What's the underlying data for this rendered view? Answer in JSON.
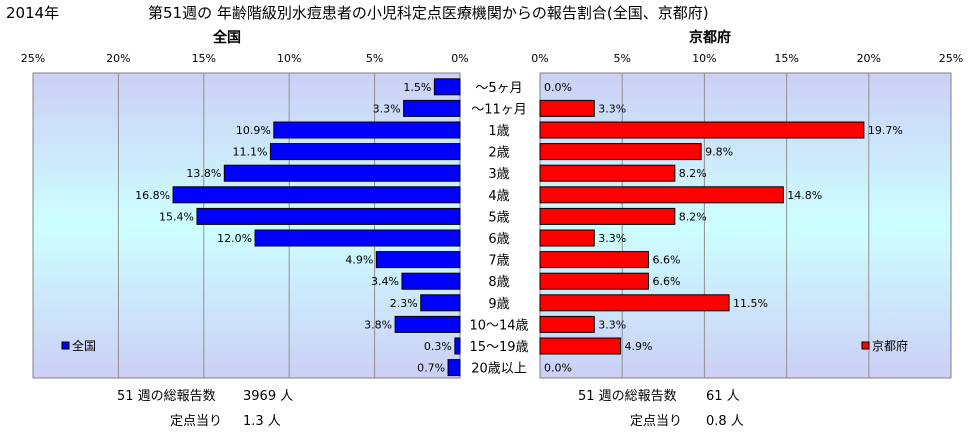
{
  "header": {
    "year": "2014年",
    "title": "第51週の  年齢階級別水痘患者の小児科定点医療機関からの報告割合(全国、京都府)"
  },
  "colors": {
    "national": "#0000ff",
    "kyoto": "#ff0000",
    "edge": "#000000"
  },
  "chart_data": [
    {
      "type": "bar",
      "orientation": "horizontal",
      "title": "全国",
      "categories": [
        "～5ヶ月",
        "～11ヶ月",
        "1歳",
        "2歳",
        "3歳",
        "4歳",
        "5歳",
        "6歳",
        "7歳",
        "8歳",
        "9歳",
        "10～14歳",
        "15～19歳",
        "20歳以上"
      ],
      "series": [
        {
          "name": "全国",
          "values": [
            1.5,
            3.3,
            10.9,
            11.1,
            13.8,
            16.8,
            15.4,
            12.0,
            4.9,
            3.4,
            2.3,
            3.8,
            0.3,
            0.7
          ]
        }
      ],
      "data_labels": [
        "1.5%",
        "3.3%",
        "10.9%",
        "11.1%",
        "13.8%",
        "16.8%",
        "15.4%",
        "12.0%",
        "4.9%",
        "3.4%",
        "2.3%",
        "3.8%",
        "0.3%",
        "0.7%"
      ],
      "xlim": [
        0,
        25
      ],
      "x_reversed": true,
      "ticks": [
        "25%",
        "20%",
        "15%",
        "10%",
        "5%",
        "0%"
      ],
      "legend": "bottom-left",
      "grid": true
    },
    {
      "type": "bar",
      "orientation": "horizontal",
      "title": "京都府",
      "categories": [
        "～5ヶ月",
        "～11ヶ月",
        "1歳",
        "2歳",
        "3歳",
        "4歳",
        "5歳",
        "6歳",
        "7歳",
        "8歳",
        "9歳",
        "10～14歳",
        "15～19歳",
        "20歳以上"
      ],
      "series": [
        {
          "name": "京都府",
          "values": [
            0.0,
            3.3,
            19.7,
            9.8,
            8.2,
            14.8,
            8.2,
            3.3,
            6.6,
            6.6,
            11.5,
            3.3,
            4.9,
            0.0
          ]
        }
      ],
      "data_labels": [
        "0.0%",
        "3.3%",
        "19.7%",
        "9.8%",
        "8.2%",
        "14.8%",
        "8.2%",
        "3.3%",
        "6.6%",
        "6.6%",
        "11.5%",
        "3.3%",
        "4.9%",
        "0.0%"
      ],
      "xlim": [
        0,
        25
      ],
      "x_reversed": false,
      "ticks": [
        "0%",
        "5%",
        "10%",
        "15%",
        "20%",
        "25%"
      ],
      "legend": "bottom-right",
      "grid": true
    }
  ],
  "footer": {
    "national": {
      "total_label": "51 週の総報告数",
      "total_value": "3969 人",
      "per_label": "定点当り",
      "per_value": "1.3 人"
    },
    "kyoto": {
      "total_label": "51 週の総報告数",
      "total_value": "61 人",
      "per_label": "定点当り",
      "per_value": "0.8 人"
    }
  }
}
